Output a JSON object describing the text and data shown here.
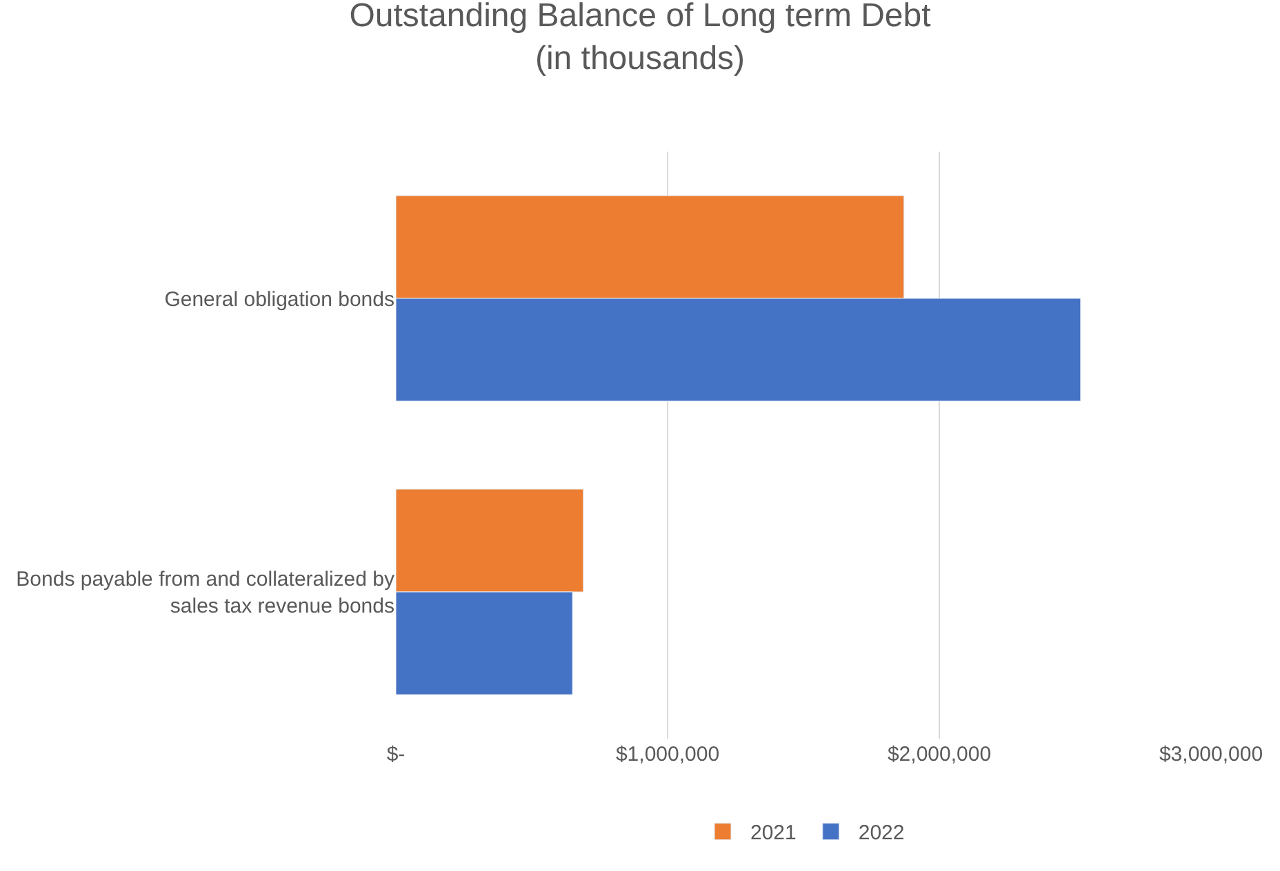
{
  "chart_data": {
    "type": "bar",
    "orientation": "horizontal",
    "title": "Outstanding Balance of Long term Debt\n(in thousands)",
    "categories": [
      "General obligation bonds",
      "Bonds payable from and collateralized by sales tax revenue bonds"
    ],
    "series": [
      {
        "name": "2021",
        "color": "#ed7d31",
        "values": [
          1870000,
          690000
        ]
      },
      {
        "name": "2022",
        "color": "#4472c4",
        "values": [
          2520000,
          650000
        ]
      }
    ],
    "xlim": [
      0,
      3000000
    ],
    "xticks": [
      {
        "value": 0,
        "label": "$-"
      },
      {
        "value": 1000000,
        "label": "$1,000,000"
      },
      {
        "value": 2000000,
        "label": "$2,000,000"
      },
      {
        "value": 3000000,
        "label": "$3,000,000"
      }
    ],
    "grid": "x",
    "legend": "bottom"
  }
}
